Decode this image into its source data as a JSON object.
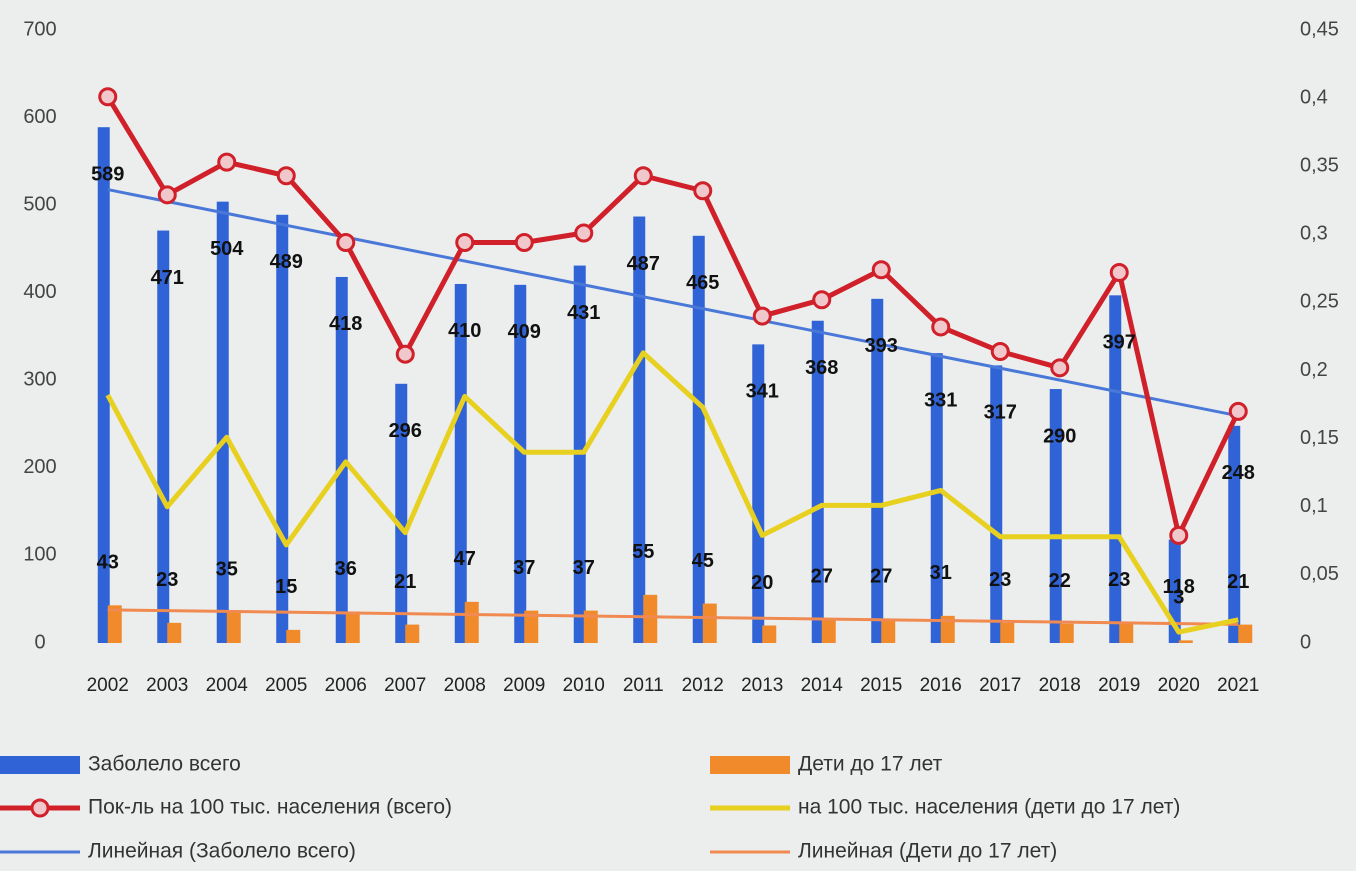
{
  "chart_data": {
    "type": "bar",
    "categories": [
      "2002",
      "2003",
      "2004",
      "2005",
      "2006",
      "2007",
      "2008",
      "2009",
      "2010",
      "2011",
      "2012",
      "2013",
      "2014",
      "2015",
      "2016",
      "2017",
      "2018",
      "2019",
      "2020",
      "2021"
    ],
    "series": [
      {
        "name": "Заболело всего",
        "color": "#2f63d6",
        "values": [
          589,
          471,
          504,
          489,
          418,
          296,
          410,
          409,
          431,
          487,
          465,
          341,
          368,
          393,
          331,
          317,
          290,
          397,
          118,
          248
        ],
        "trendline": {
          "name": "Линейная (Заболело всего)",
          "color": "#4a78d8"
        }
      },
      {
        "name": "Дети до 17 лет",
        "color": "#f08a2a",
        "values": [
          43,
          23,
          35,
          15,
          36,
          21,
          47,
          37,
          37,
          55,
          45,
          20,
          27,
          27,
          31,
          23,
          22,
          23,
          3,
          21
        ],
        "trendline": {
          "name": "Линейная (Дети до 17 лет)",
          "color": "#f08a50"
        }
      },
      {
        "name": "Пок-ль на 100 тыс. населения (всего)",
        "color": "#d0202a",
        "axis": "y2",
        "type": "line",
        "marker": true,
        "values": [
          0.401,
          0.329,
          0.353,
          0.343,
          0.294,
          0.212,
          0.294,
          0.294,
          0.301,
          0.343,
          0.332,
          0.24,
          0.252,
          0.274,
          0.232,
          0.214,
          0.202,
          0.272,
          0.079,
          0.17
        ]
      },
      {
        "name": "на 100 тыс. населения (дети до 17 лет)",
        "color": "#e8d020",
        "axis": "y2",
        "type": "line",
        "marker": false,
        "values": [
          0.182,
          0.1,
          0.151,
          0.072,
          0.133,
          0.081,
          0.181,
          0.14,
          0.14,
          0.213,
          0.173,
          0.079,
          0.101,
          0.101,
          0.112,
          0.078,
          0.078,
          0.078,
          0.008,
          0.017
        ]
      }
    ],
    "ylim": [
      0,
      700
    ],
    "yticks": [
      0,
      100,
      200,
      300,
      400,
      500,
      600,
      700
    ],
    "y2lim": [
      0,
      0.45
    ],
    "y2ticks": [
      0,
      {
        "value": 0.05,
        "label": "0,05"
      },
      {
        "value": 0.1,
        "label": "0,1"
      },
      {
        "value": 0.15,
        "label": "0,15"
      },
      {
        "value": 0.2,
        "label": "0,2"
      },
      {
        "value": 0.25,
        "label": "0,25"
      },
      {
        "value": 0.3,
        "label": "0,3"
      },
      {
        "value": 0.35,
        "label": "0,35"
      },
      {
        "value": 0.4,
        "label": "0,4"
      },
      {
        "value": 0.45,
        "label": "0,45"
      }
    ],
    "legend": "bottom"
  }
}
